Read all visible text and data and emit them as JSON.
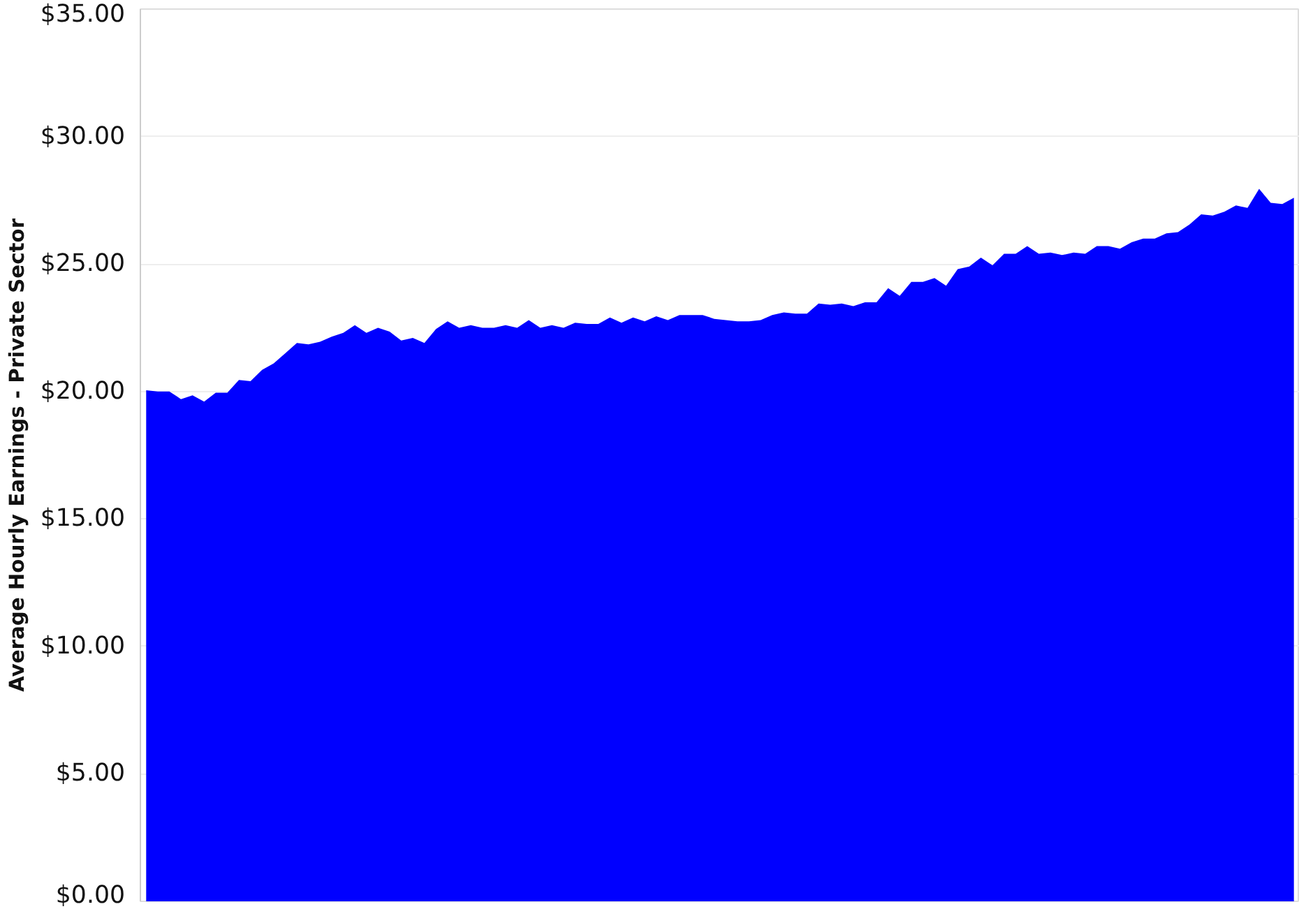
{
  "chart_data": {
    "type": "area",
    "ylabel": "Average Hourly Earnings - Private Sector",
    "categories": [
      null,
      null,
      null,
      null,
      null,
      null,
      null,
      null,
      null,
      null,
      null,
      null,
      null,
      null,
      null,
      null,
      null,
      null,
      null,
      null,
      null,
      null,
      null,
      null,
      null,
      null,
      null,
      null,
      null,
      null,
      null,
      null,
      null,
      null,
      null,
      null,
      null,
      null,
      null,
      null,
      null,
      null,
      null,
      null,
      null,
      null,
      null,
      null,
      null,
      null,
      null,
      null,
      null,
      null,
      null,
      null,
      null,
      null,
      null,
      null,
      null,
      null,
      null,
      null,
      null,
      null,
      null,
      null,
      null,
      null,
      null,
      null,
      null,
      null,
      null,
      null,
      null,
      null,
      null,
      null,
      null,
      null,
      null,
      null,
      null,
      null,
      null,
      null,
      null,
      null,
      null,
      null,
      null,
      null,
      null,
      null,
      null,
      null,
      null,
      null
    ],
    "values": [
      20.05,
      20.0,
      20.0,
      19.7,
      19.85,
      19.6,
      19.95,
      19.95,
      20.45,
      20.4,
      20.85,
      21.1,
      21.5,
      21.9,
      21.85,
      21.95,
      22.15,
      22.3,
      22.6,
      22.3,
      22.5,
      22.35,
      22.0,
      22.1,
      21.9,
      22.45,
      22.75,
      22.5,
      22.6,
      22.5,
      22.5,
      22.6,
      22.5,
      22.8,
      22.5,
      22.6,
      22.5,
      22.7,
      22.65,
      22.65,
      22.9,
      22.7,
      22.9,
      22.75,
      22.95,
      22.8,
      23.0,
      23.0,
      23.0,
      22.85,
      22.8,
      22.75,
      22.75,
      22.8,
      23.0,
      23.1,
      23.05,
      23.05,
      23.45,
      23.4,
      23.45,
      23.35,
      23.5,
      23.5,
      24.05,
      23.75,
      24.3,
      24.3,
      24.45,
      24.15,
      24.8,
      24.9,
      25.25,
      24.95,
      25.4,
      25.4,
      25.7,
      25.4,
      25.45,
      25.35,
      25.45,
      25.4,
      25.7,
      25.7,
      25.6,
      25.85,
      26.0,
      26.0,
      26.2,
      26.25,
      26.55,
      26.95,
      26.9,
      27.05,
      27.3,
      27.2,
      27.95,
      27.4,
      27.35,
      27.6
    ],
    "color": "#0000ff",
    "ylim": [
      0,
      35
    ],
    "yticks": [
      {
        "value": 0,
        "label": "$0.00"
      },
      {
        "value": 5,
        "label": "$5.00"
      },
      {
        "value": 10,
        "label": "$10.00"
      },
      {
        "value": 15,
        "label": "$15.00"
      },
      {
        "value": 20,
        "label": "$20.00"
      },
      {
        "value": 25,
        "label": "$25.00"
      },
      {
        "value": 30,
        "label": "$30.00"
      },
      {
        "value": 35,
        "label": "$35.00"
      }
    ],
    "tick_labels": "y",
    "grid": "y"
  }
}
